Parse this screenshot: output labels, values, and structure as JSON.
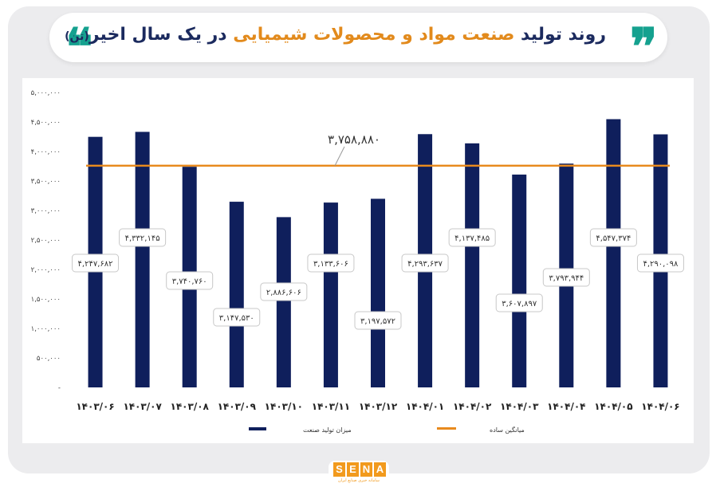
{
  "header": {
    "title_part1": "روند تولید",
    "title_part2": "صنعت مواد و محصولات شیمیایی",
    "title_part3": "در یک سال",
    "title_part4": "اخیر",
    "title_part5": "(تن)",
    "quote_glyph": "❞",
    "quote_glyph_left": "❝"
  },
  "logo": {
    "letters": [
      "S",
      "E",
      "N",
      "A"
    ],
    "subtitle": "سامانه خبری صنایع ایران"
  },
  "colors": {
    "bar": "#0f1f5c",
    "average_line": "#e88a1e",
    "accent_teal": "#15a18f",
    "title_orange": "#e28a1c",
    "title_dark": "#1b2a5e",
    "background": "#ececee"
  },
  "chart_data": {
    "type": "bar",
    "title": "",
    "xlabel": "",
    "ylabel": "",
    "ylim": [
      0,
      5000000
    ],
    "y_ticks": [
      0,
      500000,
      1000000,
      1500000,
      2000000,
      2500000,
      3000000,
      3500000,
      4000000,
      4500000,
      5000000
    ],
    "y_tick_labels": [
      "-",
      "۵۰۰,۰۰۰",
      "۱,۰۰۰,۰۰۰",
      "۱,۵۰۰,۰۰۰",
      "۲,۰۰۰,۰۰۰",
      "۲,۵۰۰,۰۰۰",
      "۳,۰۰۰,۰۰۰",
      "۳,۵۰۰,۰۰۰",
      "۴,۰۰۰,۰۰۰",
      "۴,۵۰۰,۰۰۰",
      "۵,۰۰۰,۰۰۰"
    ],
    "categories": [
      "۱۴۰۳/۰۶",
      "۱۴۰۳/۰۷",
      "۱۴۰۳/۰۸",
      "۱۴۰۳/۰۹",
      "۱۴۰۳/۱۰",
      "۱۴۰۳/۱۱",
      "۱۴۰۳/۱۲",
      "۱۴۰۴/۰۱",
      "۱۴۰۴/۰۲",
      "۱۴۰۴/۰۳",
      "۱۴۰۴/۰۴",
      "۱۴۰۴/۰۵",
      "۱۴۰۴/۰۶"
    ],
    "series": [
      {
        "name": "میزان تولید صنعت",
        "values": [
          4247682,
          4332145,
          3740760,
          3147530,
          2886606,
          3133606,
          3197572,
          4293637,
          4137485,
          3607897,
          3793944,
          4547374,
          4290098
        ],
        "labels": [
          "۴,۲۴۷,۶۸۲",
          "۴,۳۳۲,۱۴۵",
          "۳,۷۴۰,۷۶۰",
          "۳,۱۴۷,۵۳۰",
          "۲,۸۸۶,۶۰۶",
          "۳,۱۳۳,۶۰۶",
          "۳,۱۹۷,۵۷۲",
          "۴,۲۹۳,۶۳۷",
          "۴,۱۳۷,۴۸۵",
          "۳,۶۰۷,۸۹۷",
          "۳,۷۹۳,۹۴۴",
          "۴,۵۴۷,۳۷۴",
          "۴,۲۹۰,۰۹۸"
        ]
      },
      {
        "name": "میانگین ساده",
        "type": "line",
        "value": 3758880,
        "label": "۳,۷۵۸,۸۸۰"
      }
    ],
    "grid": false,
    "legend_position": "bottom"
  }
}
